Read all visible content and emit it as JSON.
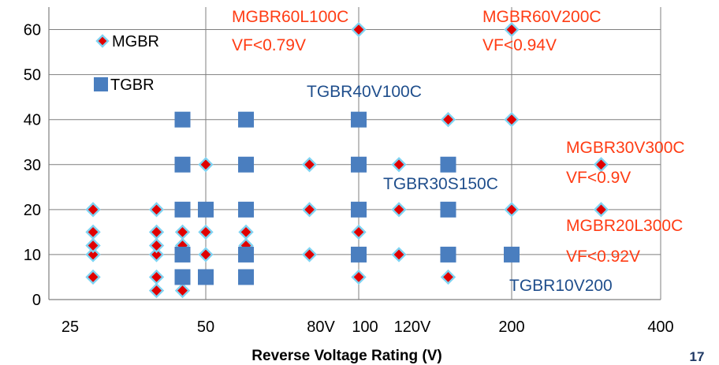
{
  "page_number": "17",
  "chart_data": {
    "type": "scatter",
    "title": "",
    "xlabel": "Reverse Voltage Rating (V)",
    "ylabel": "",
    "x_scale": "log",
    "xlim": [
      25,
      400
    ],
    "ylim": [
      0,
      65
    ],
    "grid": true,
    "legend_position": "top-left",
    "x_ticks": [
      "25",
      "50",
      "80V",
      "100",
      "120V",
      "200",
      "400"
    ],
    "y_ticks": [
      "0",
      "10",
      "20",
      "30",
      "40",
      "50",
      "60"
    ],
    "colors": {
      "mgbr_fill": "#e00000",
      "mgbr_edge": "#7fd3f2",
      "tgbr": "#4a7ebf",
      "anno_mgbr": "#ff3c14",
      "anno_tgbr": "#1f4e8c",
      "grid": "#7f7f7f"
    },
    "series": [
      {
        "name": "MGBR",
        "marker": "diamond",
        "points": [
          [
            30,
            5
          ],
          [
            30,
            10
          ],
          [
            30,
            12
          ],
          [
            30,
            15
          ],
          [
            30,
            20
          ],
          [
            40,
            2
          ],
          [
            40,
            5
          ],
          [
            40,
            10
          ],
          [
            40,
            12
          ],
          [
            40,
            15
          ],
          [
            40,
            20
          ],
          [
            45,
            2
          ],
          [
            45,
            5
          ],
          [
            45,
            10
          ],
          [
            45,
            12
          ],
          [
            45,
            15
          ],
          [
            45,
            20
          ],
          [
            50,
            10
          ],
          [
            50,
            15
          ],
          [
            50,
            20
          ],
          [
            50,
            30
          ],
          [
            60,
            10
          ],
          [
            60,
            12
          ],
          [
            60,
            15
          ],
          [
            80,
            10
          ],
          [
            80,
            20
          ],
          [
            80,
            30
          ],
          [
            100,
            5
          ],
          [
            100,
            15
          ],
          [
            100,
            60
          ],
          [
            120,
            10
          ],
          [
            120,
            20
          ],
          [
            120,
            30
          ],
          [
            150,
            5
          ],
          [
            150,
            40
          ],
          [
            200,
            20
          ],
          [
            200,
            40
          ],
          [
            200,
            60
          ],
          [
            300,
            20
          ],
          [
            300,
            30
          ]
        ]
      },
      {
        "name": "TGBR",
        "marker": "square",
        "points": [
          [
            45,
            5
          ],
          [
            45,
            10
          ],
          [
            45,
            20
          ],
          [
            45,
            30
          ],
          [
            45,
            40
          ],
          [
            50,
            5
          ],
          [
            50,
            20
          ],
          [
            60,
            5
          ],
          [
            60,
            10
          ],
          [
            60,
            20
          ],
          [
            60,
            30
          ],
          [
            60,
            40
          ],
          [
            100,
            10
          ],
          [
            100,
            20
          ],
          [
            100,
            30
          ],
          [
            100,
            40
          ],
          [
            150,
            10
          ],
          [
            150,
            20
          ],
          [
            150,
            30
          ],
          [
            200,
            10
          ]
        ]
      }
    ],
    "annotations": [
      {
        "text": "MGBR60L100C",
        "series": "MGBR"
      },
      {
        "text": "VF<0.79V",
        "series": "MGBR"
      },
      {
        "text": "MGBR60V200C",
        "series": "MGBR"
      },
      {
        "text": "VF<0.94V",
        "series": "MGBR"
      },
      {
        "text": "MGBR30V300C",
        "series": "MGBR"
      },
      {
        "text": "VF<0.9V",
        "series": "MGBR"
      },
      {
        "text": "MGBR20L300C",
        "series": "MGBR"
      },
      {
        "text": "VF<0.92V",
        "series": "MGBR"
      },
      {
        "text": "TGBR40V100C",
        "series": "TGBR"
      },
      {
        "text": "TGBR30S150C",
        "series": "TGBR"
      },
      {
        "text": "TGBR10V200",
        "series": "TGBR"
      }
    ]
  }
}
